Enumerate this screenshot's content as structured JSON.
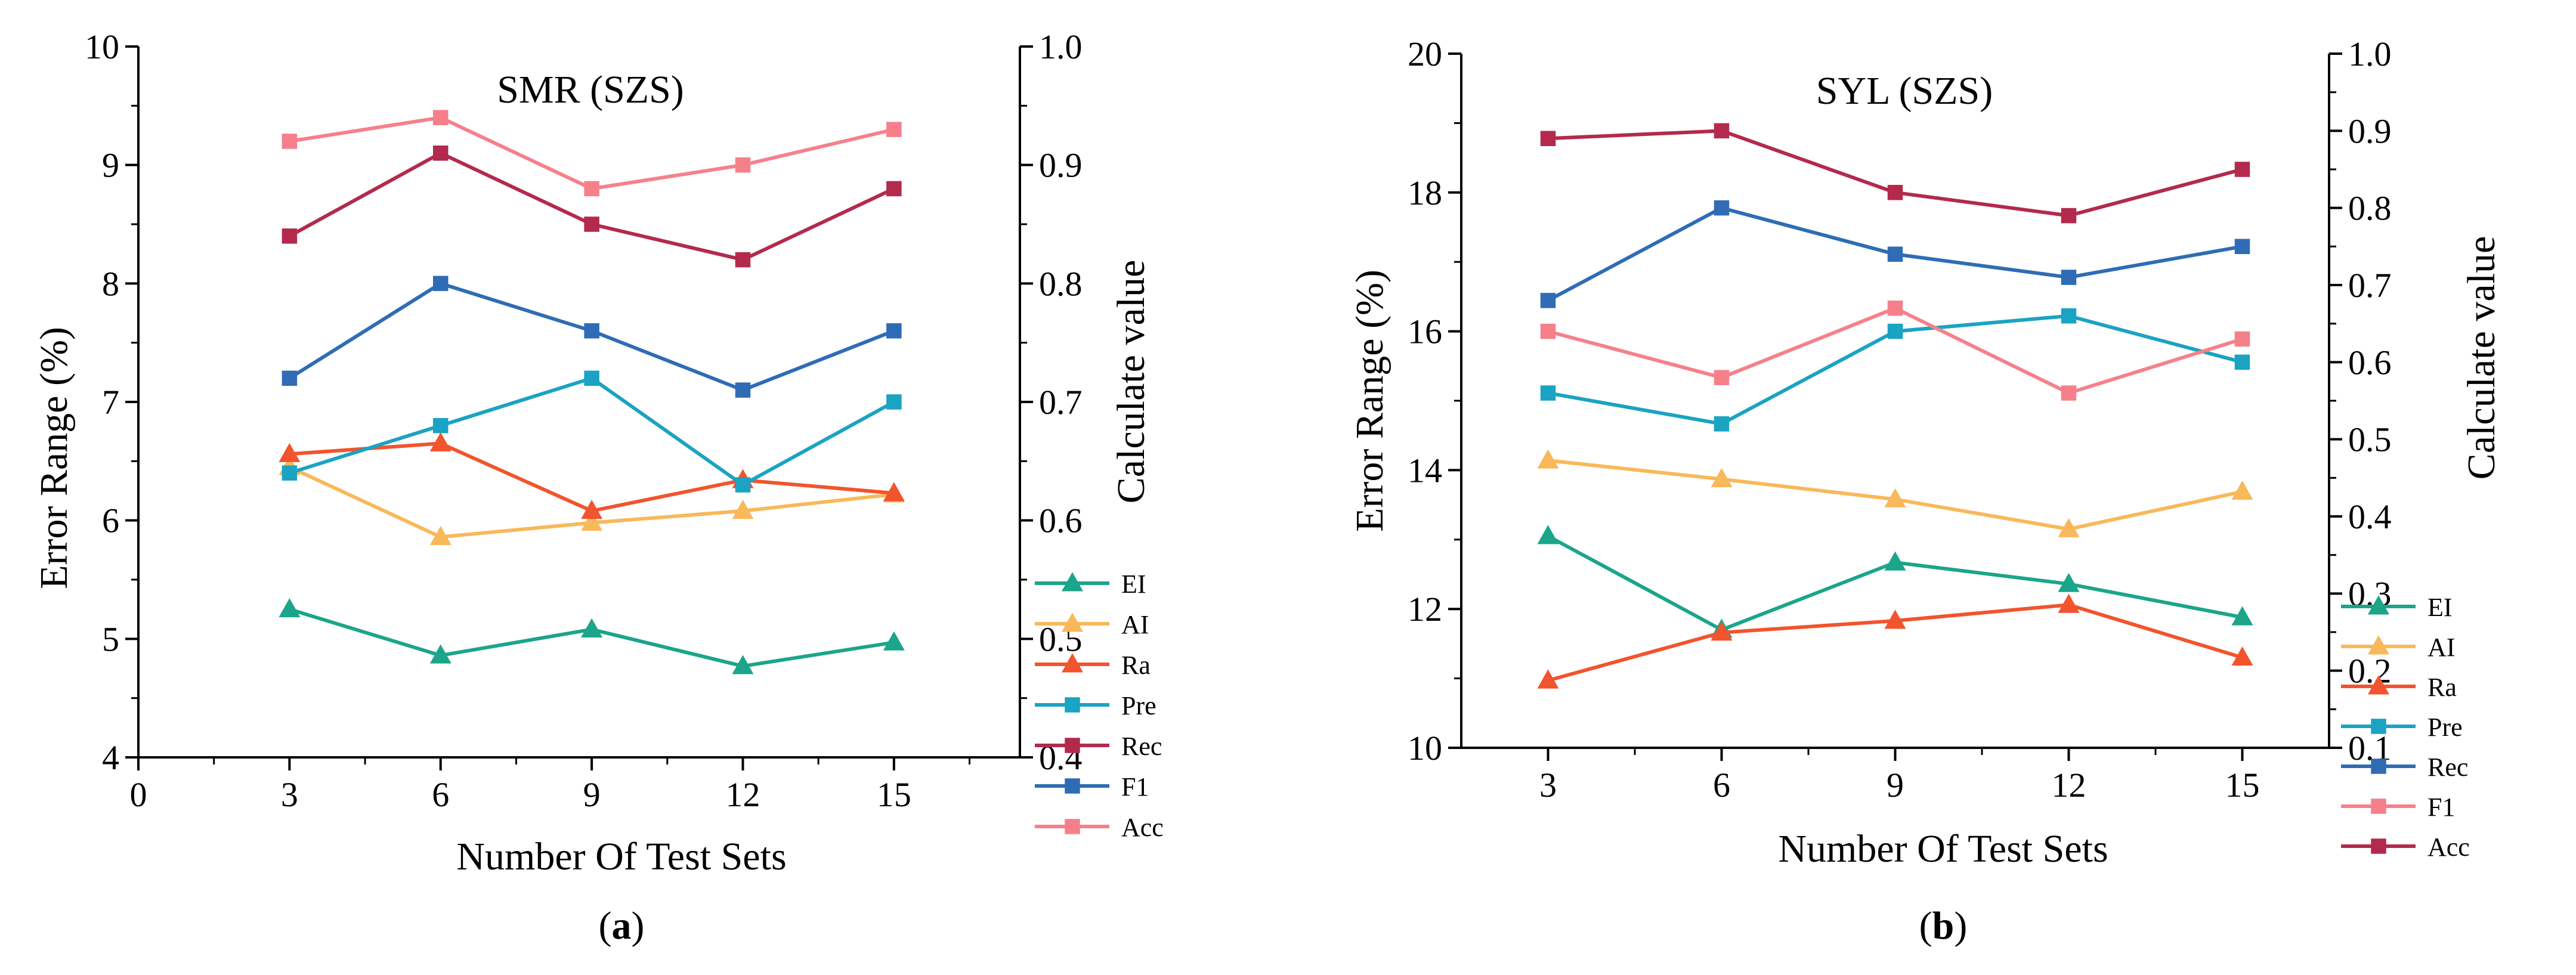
{
  "chart_data": [
    {
      "type": "line",
      "title": "SMR (SZS)",
      "panel_label": "a",
      "xlabel": "Number Of Test Sets",
      "ylabel_left": "Error Range (%)",
      "ylabel_right": "Calculate value",
      "x": [
        3,
        6,
        9,
        12,
        15
      ],
      "xlim": [
        0,
        17.5
      ],
      "xticks": [
        "0",
        "3",
        "6",
        "9",
        "12",
        "15"
      ],
      "ylim_left": [
        4,
        10
      ],
      "yticks_left": [
        "4",
        "5",
        "6",
        "7",
        "8",
        "9",
        "10"
      ],
      "ylim_right": [
        0.4,
        1.0
      ],
      "yticks_right": [
        "0.4",
        "0.5",
        "0.6",
        "0.7",
        "0.8",
        "0.9",
        "1.0"
      ],
      "grid": false,
      "legend_position": "right, outside, bottom",
      "series": [
        {
          "name": "EI",
          "axis": "left",
          "marker": "triangle",
          "color": "#1BA58A",
          "values": [
            5.25,
            4.86,
            5.08,
            4.77,
            4.97
          ]
        },
        {
          "name": "AI",
          "axis": "left",
          "marker": "triangle",
          "color": "#F9B85A",
          "values": [
            6.45,
            5.86,
            5.98,
            6.08,
            6.22
          ]
        },
        {
          "name": "Ra",
          "axis": "left",
          "marker": "triangle",
          "color": "#F2542D",
          "values": [
            6.56,
            6.65,
            6.08,
            6.34,
            6.23
          ]
        },
        {
          "name": "Pre",
          "axis": "right",
          "marker": "square",
          "color": "#1AA3C3",
          "values": [
            0.64,
            0.68,
            0.72,
            0.63,
            0.7
          ]
        },
        {
          "name": "Rec",
          "axis": "right",
          "marker": "square",
          "color": "#B32A4D",
          "values": [
            0.84,
            0.91,
            0.85,
            0.82,
            0.88
          ]
        },
        {
          "name": "F1",
          "axis": "right",
          "marker": "square",
          "color": "#2F6CB5",
          "values": [
            0.72,
            0.8,
            0.76,
            0.71,
            0.76
          ]
        },
        {
          "name": "Acc",
          "axis": "right",
          "marker": "square",
          "color": "#F6808A",
          "values": [
            0.92,
            0.94,
            0.88,
            0.9,
            0.93
          ]
        }
      ]
    },
    {
      "type": "line",
      "title": "SYL (SZS)",
      "panel_label": "b",
      "xlabel": "Number Of Test Sets",
      "ylabel_left": "Error Range (%)",
      "ylabel_right": "Calculate value",
      "x": [
        3,
        6,
        9,
        12,
        15
      ],
      "xlim": [
        1.5,
        16.5
      ],
      "xticks": [
        "3",
        "6",
        "9",
        "12",
        "15"
      ],
      "ylim_left": [
        10,
        20
      ],
      "yticks_left": [
        "10",
        "12",
        "14",
        "16",
        "18",
        "20"
      ],
      "ylim_right": [
        0.1,
        1.0
      ],
      "yticks_right": [
        "0.1",
        "0.2",
        "0.3",
        "0.4",
        "0.5",
        "0.6",
        "0.7",
        "0.8",
        "0.9",
        "1.0"
      ],
      "grid": false,
      "legend_position": "right, outside, bottom",
      "series": [
        {
          "name": "EI",
          "axis": "left",
          "marker": "triangle",
          "color": "#1BA58A",
          "values": [
            13.05,
            11.7,
            12.67,
            12.36,
            11.88
          ]
        },
        {
          "name": "AI",
          "axis": "left",
          "marker": "triangle",
          "color": "#F9B85A",
          "values": [
            14.14,
            13.87,
            13.58,
            13.15,
            13.69
          ]
        },
        {
          "name": "Ra",
          "axis": "left",
          "marker": "triangle",
          "color": "#F2542D",
          "values": [
            10.97,
            11.66,
            11.83,
            12.06,
            11.3
          ]
        },
        {
          "name": "Pre",
          "axis": "right",
          "marker": "square",
          "color": "#1AA3C3",
          "values": [
            0.56,
            0.52,
            0.64,
            0.66,
            0.6
          ]
        },
        {
          "name": "Rec",
          "axis": "right",
          "marker": "square",
          "color": "#2F6CB5",
          "values": [
            0.68,
            0.8,
            0.74,
            0.71,
            0.75
          ]
        },
        {
          "name": "F1",
          "axis": "right",
          "marker": "square",
          "color": "#F6808A",
          "values": [
            0.64,
            0.58,
            0.67,
            0.56,
            0.63
          ]
        },
        {
          "name": "Acc",
          "axis": "right",
          "marker": "square",
          "color": "#B32A4D",
          "values": [
            0.89,
            0.9,
            0.82,
            0.79,
            0.85
          ]
        }
      ]
    }
  ]
}
